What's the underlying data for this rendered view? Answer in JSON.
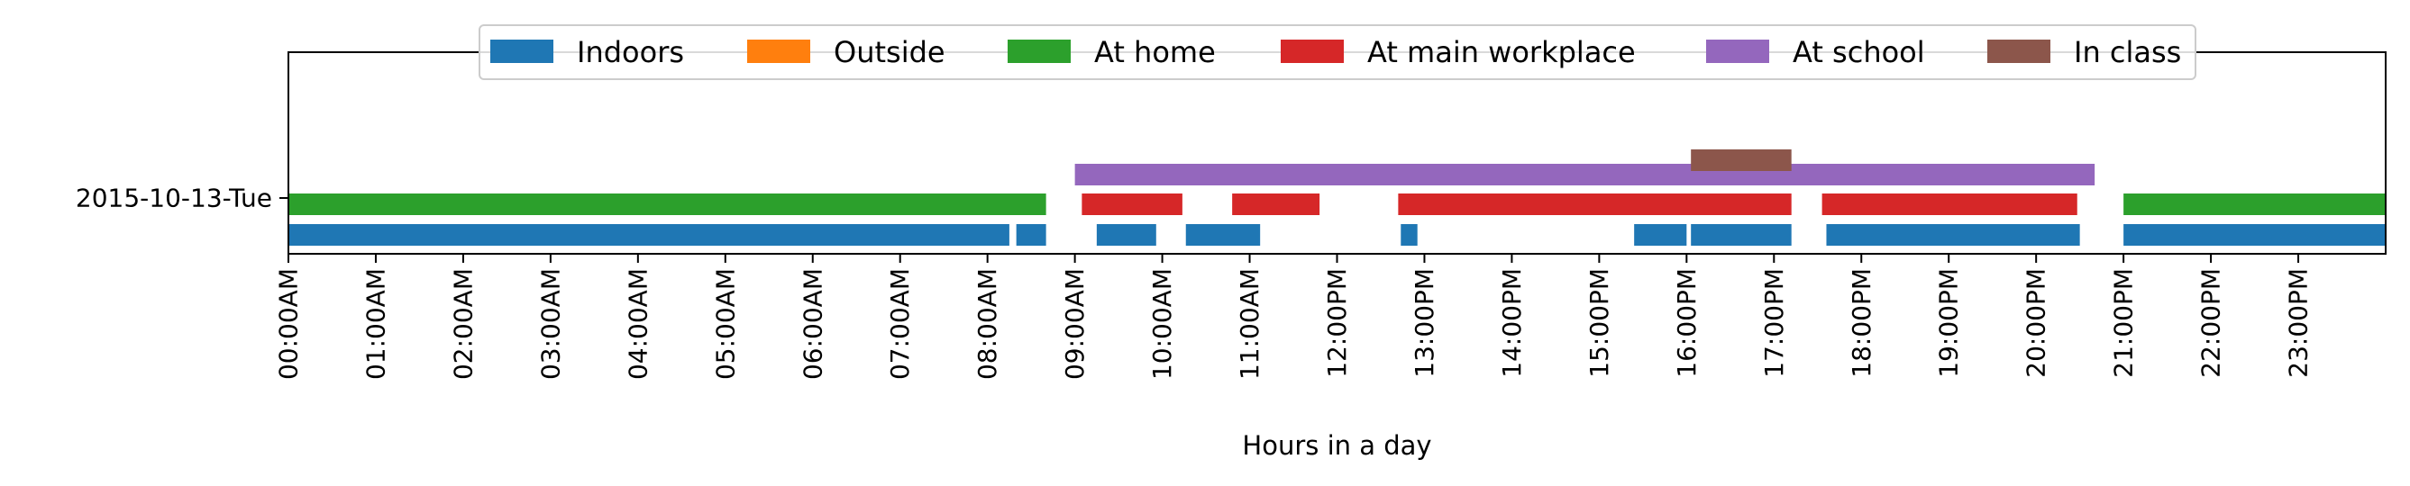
{
  "chart_data": {
    "type": "timeline",
    "title": "",
    "xlabel": "Hours in a day",
    "ylabel": "",
    "xlim": [
      0,
      24
    ],
    "row_label": "2015-10-13-Tue",
    "x_tick_labels": [
      "00:00AM",
      "01:00AM",
      "02:00AM",
      "03:00AM",
      "04:00AM",
      "05:00AM",
      "06:00AM",
      "07:00AM",
      "08:00AM",
      "09:00AM",
      "10:00AM",
      "11:00AM",
      "12:00PM",
      "13:00PM",
      "14:00PM",
      "15:00PM",
      "16:00PM",
      "17:00PM",
      "18:00PM",
      "19:00PM",
      "20:00PM",
      "21:00PM",
      "22:00PM",
      "23:00PM"
    ],
    "legend_position": "top-center",
    "grid": false,
    "series": [
      {
        "name": "Indoors",
        "color": "#1f77b4",
        "lane": 0,
        "intervals": [
          [
            0.0,
            8.25
          ],
          [
            8.33,
            8.67
          ],
          [
            9.25,
            9.93
          ],
          [
            10.27,
            11.12
          ],
          [
            12.73,
            12.92
          ],
          [
            15.4,
            16.0
          ],
          [
            16.05,
            17.2
          ],
          [
            17.6,
            20.5
          ],
          [
            21.0,
            24.0
          ]
        ]
      },
      {
        "name": "Outside",
        "color": "#ff7f0e",
        "lane": 0,
        "intervals": []
      },
      {
        "name": "At home",
        "color": "#2ca02c",
        "lane": 1,
        "intervals": [
          [
            0.0,
            8.67
          ],
          [
            21.0,
            24.0
          ]
        ]
      },
      {
        "name": "At main workplace",
        "color": "#d62728",
        "lane": 1,
        "intervals": [
          [
            9.08,
            10.23
          ],
          [
            10.8,
            11.8
          ],
          [
            12.7,
            17.2
          ],
          [
            17.55,
            20.47
          ]
        ]
      },
      {
        "name": "At school",
        "color": "#9467bd",
        "lane": 2,
        "intervals": [
          [
            9.0,
            20.67
          ]
        ]
      },
      {
        "name": "In class",
        "color": "#8c564b",
        "lane": 3,
        "intervals": [
          [
            16.05,
            17.2
          ]
        ]
      }
    ]
  }
}
